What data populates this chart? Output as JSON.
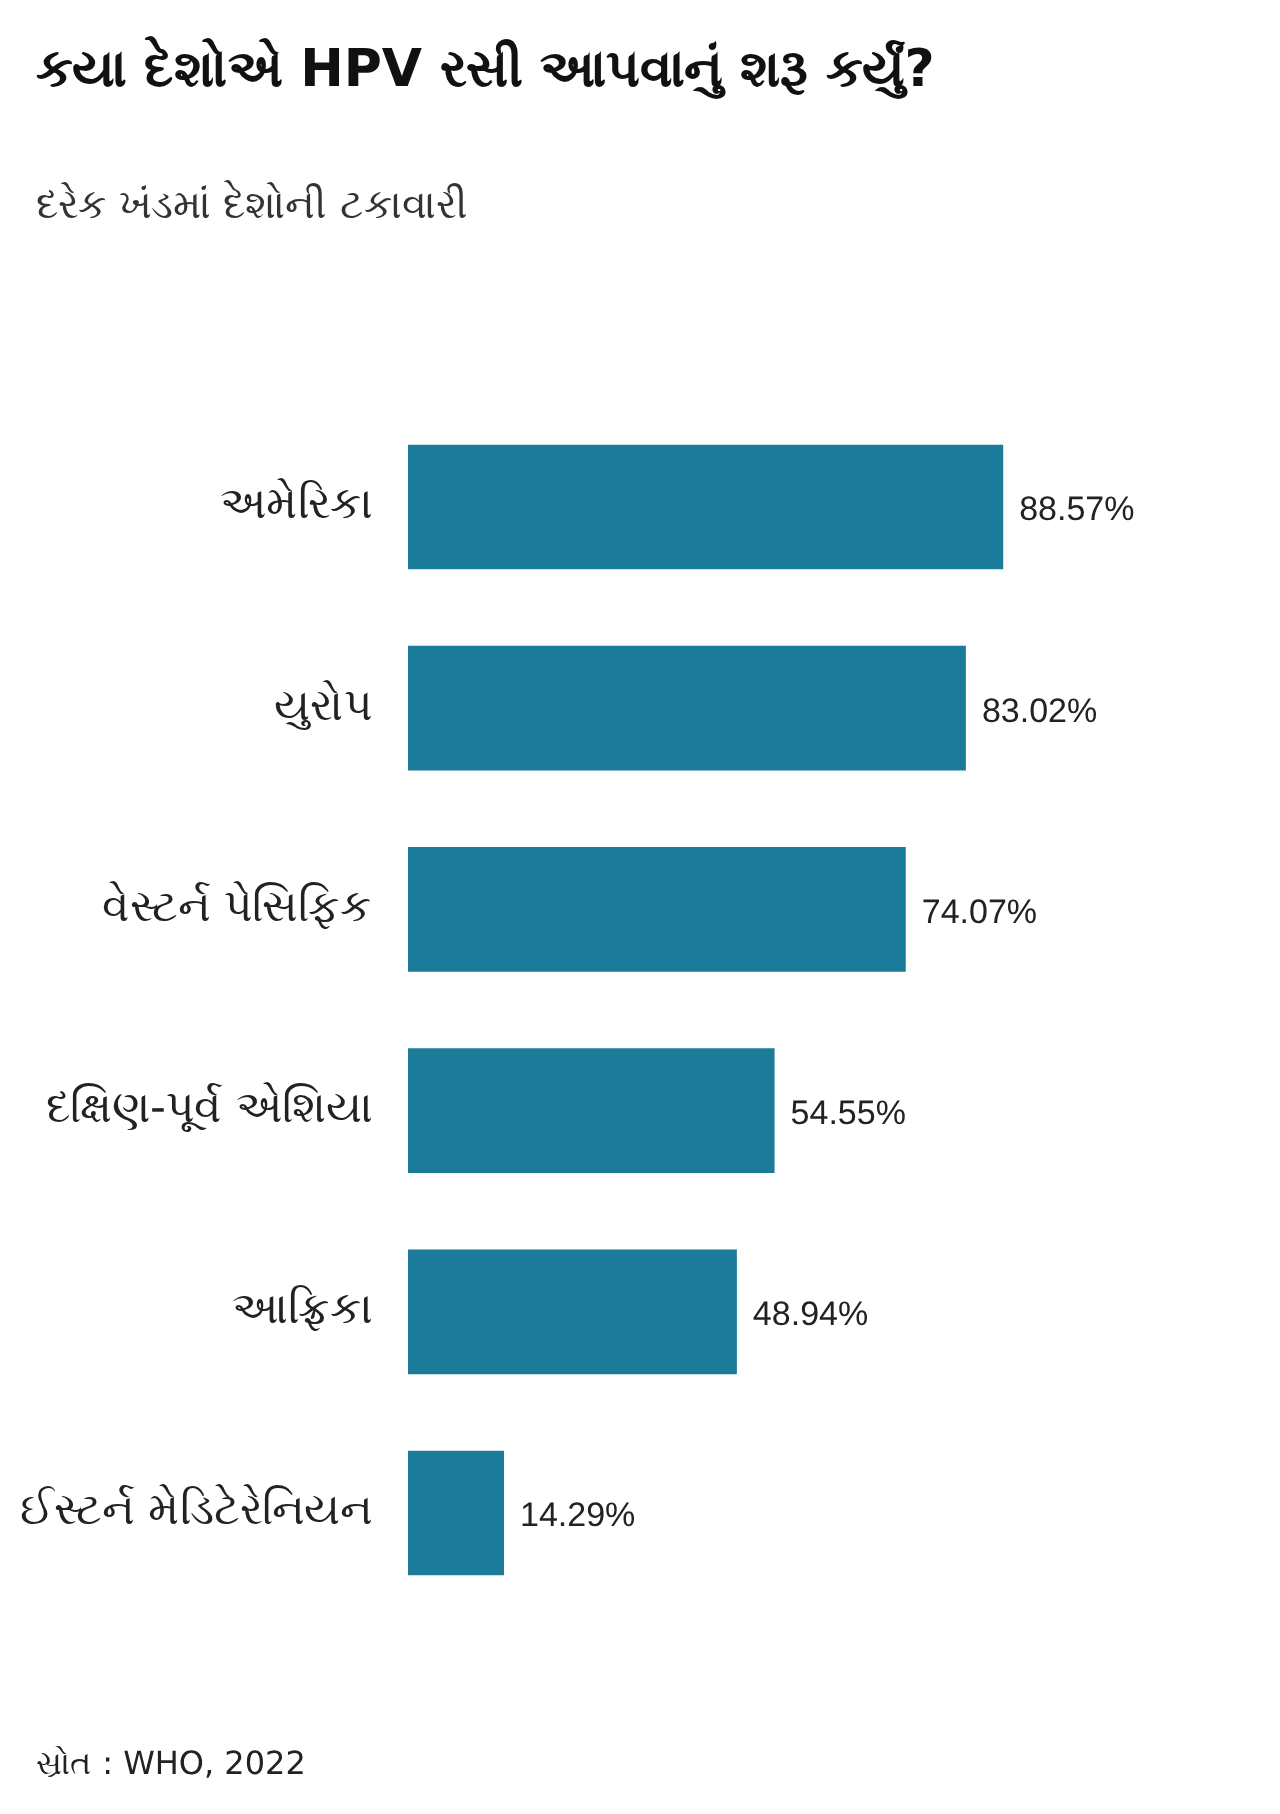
{
  "chart_data": {
    "type": "bar",
    "orientation": "horizontal",
    "title": "કયા દેશોએ HPV રસી આપવાનું શરૂ કર્યું?",
    "subtitle": "દરેક ખંડમાં દેશોની ટકાવારી",
    "categories": [
      "અમેરિકા",
      "યુરોપ",
      "વેસ્ટર્ન પેસિફિક",
      "દક્ષિણ-પૂર્વ એશિયા",
      "આફ્રિકા",
      "ઈસ્ટર્ન મેડિટેરેનિયન"
    ],
    "values": [
      88.57,
      83.02,
      74.07,
      54.55,
      48.94,
      14.29
    ],
    "value_labels": [
      "88.57%",
      "83.02%",
      "74.07%",
      "54.55%",
      "48.94%",
      "14.29%"
    ],
    "color": "#1b7b99",
    "grid": false,
    "legend": false,
    "annotations": [
      "સ્રોત : WHO, 2022"
    ]
  }
}
